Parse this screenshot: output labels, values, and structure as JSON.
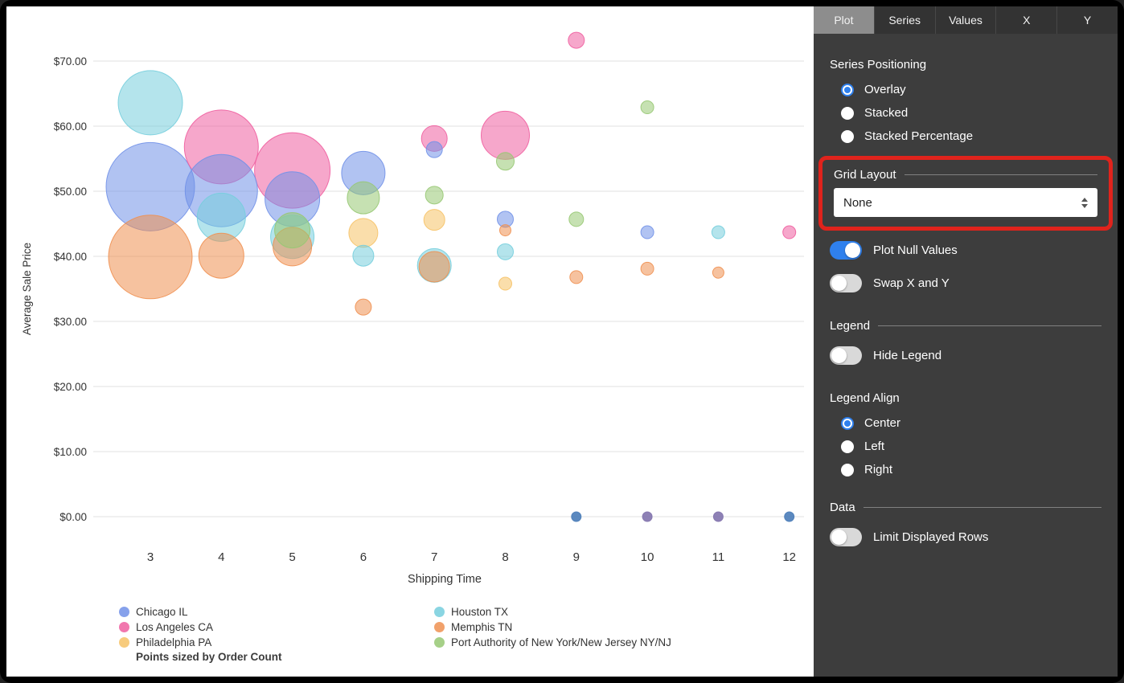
{
  "panel": {
    "tabs": [
      {
        "label": "Plot",
        "active": true
      },
      {
        "label": "Series",
        "active": false
      },
      {
        "label": "Values",
        "active": false
      },
      {
        "label": "X",
        "active": false
      },
      {
        "label": "Y",
        "active": false
      }
    ],
    "series_positioning": {
      "label": "Series Positioning",
      "options": [
        {
          "label": "Overlay",
          "selected": true
        },
        {
          "label": "Stacked",
          "selected": false
        },
        {
          "label": "Stacked Percentage",
          "selected": false
        }
      ]
    },
    "grid_layout": {
      "label": "Grid Layout",
      "value": "None"
    },
    "plot_null_values": {
      "label": "Plot Null Values",
      "on": true
    },
    "swap_x_y": {
      "label": "Swap X and Y",
      "on": false
    },
    "legend": {
      "label": "Legend"
    },
    "hide_legend": {
      "label": "Hide Legend",
      "on": false
    },
    "legend_align": {
      "label": "Legend Align",
      "options": [
        {
          "label": "Center",
          "selected": true
        },
        {
          "label": "Left",
          "selected": false
        },
        {
          "label": "Right",
          "selected": false
        }
      ]
    },
    "data_section": {
      "label": "Data"
    },
    "limit_rows": {
      "label": "Limit Displayed Rows",
      "on": false
    },
    "colors": {
      "accent_blue": "#2f80ed",
      "panel_bg": "#3d3d3d",
      "annotation_red": "#e0231c"
    }
  },
  "chart_data": {
    "type": "scatter",
    "xlabel": "Shipping Time",
    "ylabel": "Average Sale Price",
    "xlim": [
      2.5,
      12.5
    ],
    "ylim": [
      0,
      75
    ],
    "x_ticks": [
      3,
      4,
      5,
      6,
      7,
      8,
      9,
      10,
      11,
      12
    ],
    "y_ticks": [
      "$0.00",
      "$10.00",
      "$20.00",
      "$30.00",
      "$40.00",
      "$50.00",
      "$60.00",
      "$70.00"
    ],
    "grid": true,
    "legend_position": "bottom",
    "sized_by_note": "Points sized by Order Count",
    "series": [
      {
        "name": "Chicago IL",
        "color": "#7191e8",
        "points": [
          {
            "x": 3,
            "y": 50.7,
            "r": 55
          },
          {
            "x": 4,
            "y": 50.1,
            "r": 45
          },
          {
            "x": 5,
            "y": 48.8,
            "r": 34
          },
          {
            "x": 6,
            "y": 52.8,
            "r": 27
          },
          {
            "x": 7,
            "y": 56.4,
            "r": 10
          },
          {
            "x": 8,
            "y": 45.7,
            "r": 10
          },
          {
            "x": 10,
            "y": 43.7,
            "r": 8
          }
        ]
      },
      {
        "name": "Los Angeles CA",
        "color": "#ef5fa0",
        "points": [
          {
            "x": 4,
            "y": 56.8,
            "r": 46
          },
          {
            "x": 5,
            "y": 53.2,
            "r": 47
          },
          {
            "x": 7,
            "y": 58.1,
            "r": 16
          },
          {
            "x": 8,
            "y": 58.6,
            "r": 30
          },
          {
            "x": 9,
            "y": 73.2,
            "r": 10
          },
          {
            "x": 12,
            "y": 43.7,
            "r": 8
          }
        ]
      },
      {
        "name": "Philadelphia PA",
        "color": "#f6c266",
        "points": [
          {
            "x": 6,
            "y": 43.6,
            "r": 18
          },
          {
            "x": 7,
            "y": 45.6,
            "r": 13
          },
          {
            "x": 8,
            "y": 35.8,
            "r": 8
          }
        ]
      },
      {
        "name": "Houston TX",
        "color": "#76cedd",
        "points": [
          {
            "x": 3,
            "y": 63.6,
            "r": 40
          },
          {
            "x": 4,
            "y": 46.0,
            "r": 30
          },
          {
            "x": 5,
            "y": 43.0,
            "r": 27
          },
          {
            "x": 6,
            "y": 40.1,
            "r": 13
          },
          {
            "x": 7,
            "y": 38.6,
            "r": 21
          },
          {
            "x": 8,
            "y": 40.7,
            "r": 10
          },
          {
            "x": 11,
            "y": 43.7,
            "r": 8
          }
        ]
      },
      {
        "name": "Memphis TN",
        "color": "#ef9051",
        "points": [
          {
            "x": 3,
            "y": 39.9,
            "r": 52
          },
          {
            "x": 4,
            "y": 40.1,
            "r": 28
          },
          {
            "x": 5,
            "y": 41.5,
            "r": 24
          },
          {
            "x": 6,
            "y": 32.2,
            "r": 10
          },
          {
            "x": 7,
            "y": 38.4,
            "r": 19
          },
          {
            "x": 8,
            "y": 44.0,
            "r": 7
          },
          {
            "x": 9,
            "y": 36.8,
            "r": 8
          },
          {
            "x": 10,
            "y": 38.1,
            "r": 8
          },
          {
            "x": 11,
            "y": 37.5,
            "r": 7
          }
        ]
      },
      {
        "name": "Port Authority of New York/New Jersey NY/NJ",
        "color": "#97c873",
        "points": [
          {
            "x": 5,
            "y": 44.0,
            "r": 22
          },
          {
            "x": 6,
            "y": 49.0,
            "r": 20
          },
          {
            "x": 7,
            "y": 49.4,
            "r": 11
          },
          {
            "x": 8,
            "y": 54.6,
            "r": 11
          },
          {
            "x": 9,
            "y": 45.7,
            "r": 9
          },
          {
            "x": 10,
            "y": 62.9,
            "r": 8
          }
        ]
      }
    ],
    "null_points": [
      {
        "x": 9,
        "y": 0,
        "r": 6,
        "color": "#4a7cb8"
      },
      {
        "x": 10,
        "y": 0,
        "r": 6,
        "color": "#8273ad"
      },
      {
        "x": 11,
        "y": 0,
        "r": 6,
        "color": "#8273ad"
      },
      {
        "x": 12,
        "y": 0,
        "r": 6,
        "color": "#4a7cb8"
      }
    ]
  }
}
